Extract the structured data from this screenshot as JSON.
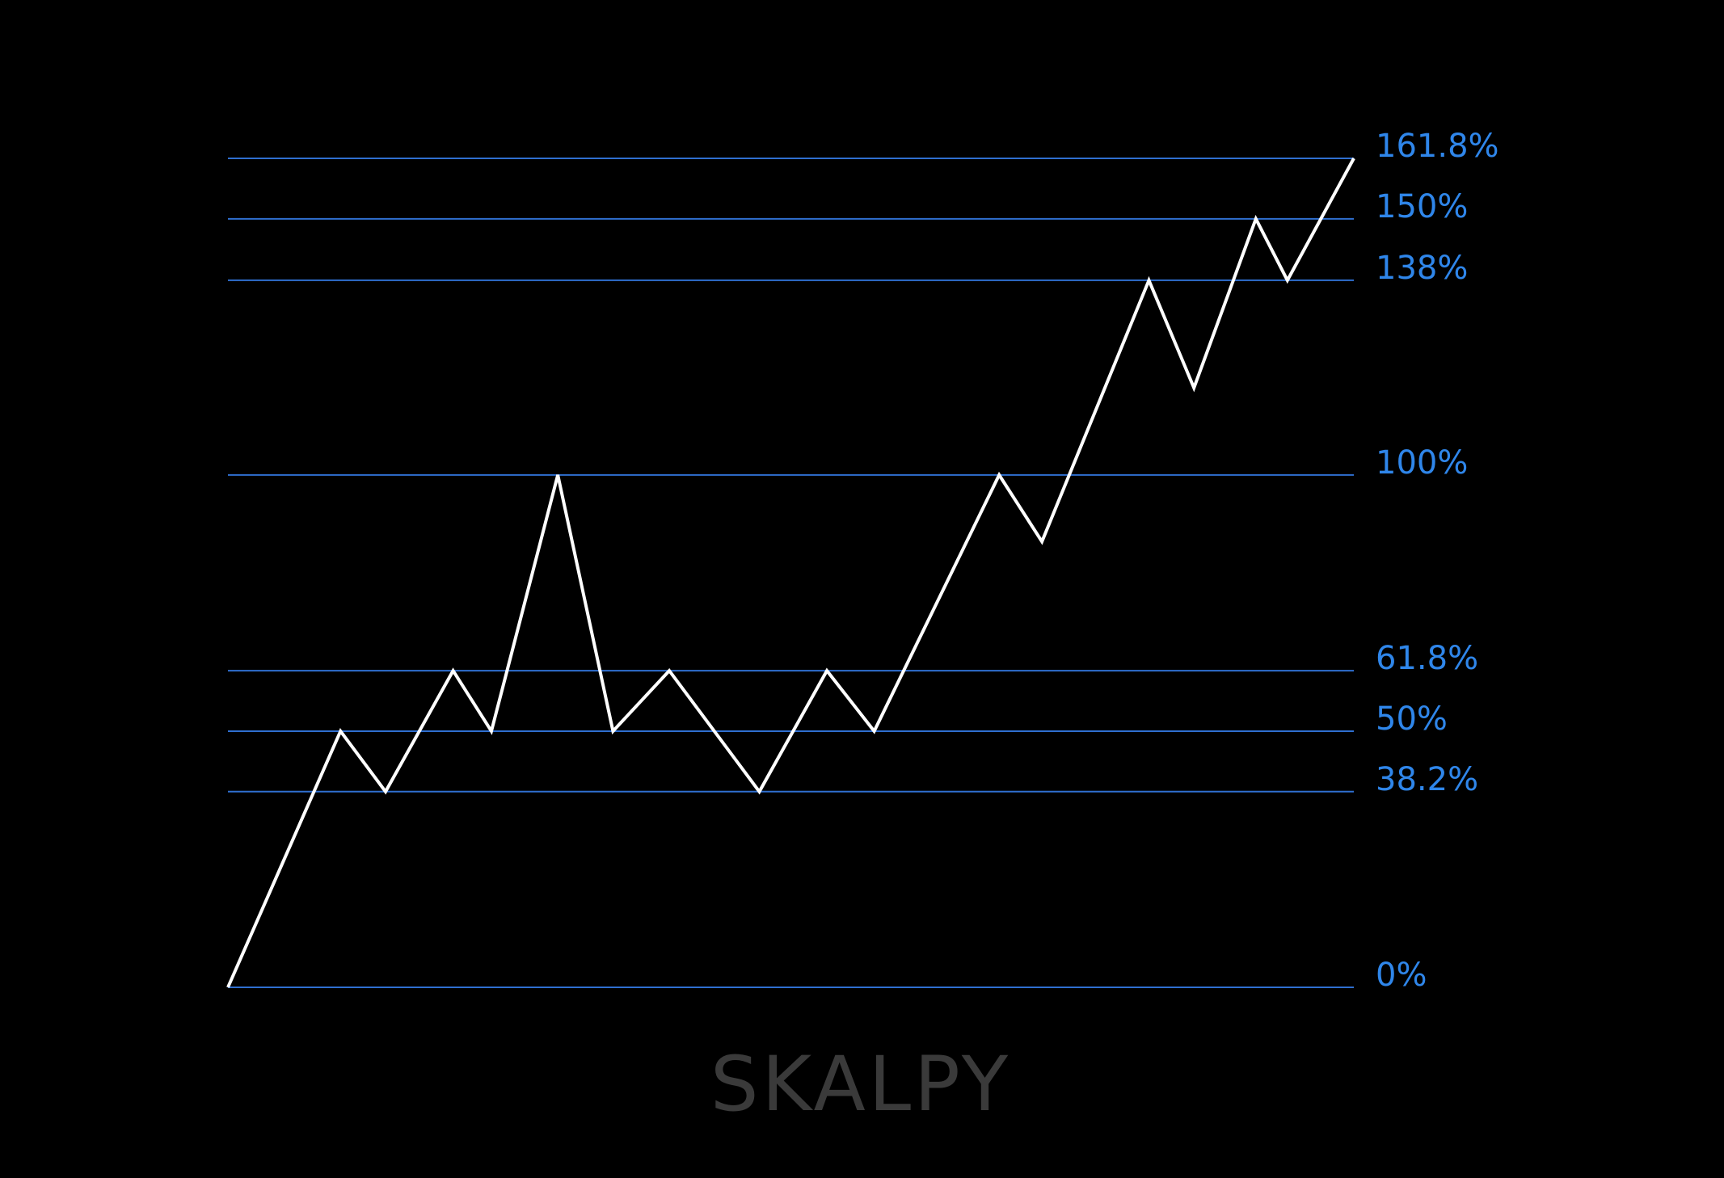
{
  "chart_data": {
    "type": "line",
    "x": [
      0,
      10,
      14,
      20,
      23.4,
      29.3,
      34.2,
      39.2,
      47.2,
      53.2,
      57.4,
      68.5,
      72.3,
      81.8,
      85.8,
      91.3,
      94.1,
      100
    ],
    "series": [
      {
        "color": "#ffffff",
        "values": [
          0,
          50,
          38.2,
          61.8,
          50,
          100,
          50,
          61.8,
          38.2,
          61.8,
          50,
          100,
          87,
          138,
          117,
          150,
          138,
          161.8
        ]
      }
    ],
    "xlim": [
      0,
      100
    ],
    "ylim": [
      0,
      161.8
    ],
    "yticks": [
      {
        "value": 0,
        "label": "0%"
      },
      {
        "value": 38.2,
        "label": "38.2%"
      },
      {
        "value": 50,
        "label": "50%"
      },
      {
        "value": 61.8,
        "label": "61.8%"
      },
      {
        "value": 100,
        "label": "100%"
      },
      {
        "value": 138,
        "label": "138%"
      },
      {
        "value": 150,
        "label": "150%"
      },
      {
        "value": 161.8,
        "label": "161.8%"
      }
    ],
    "grid": true,
    "grid_color": "#2f6fd0",
    "tick_label_color": "#2f86ea",
    "watermark": "SKALPY"
  }
}
